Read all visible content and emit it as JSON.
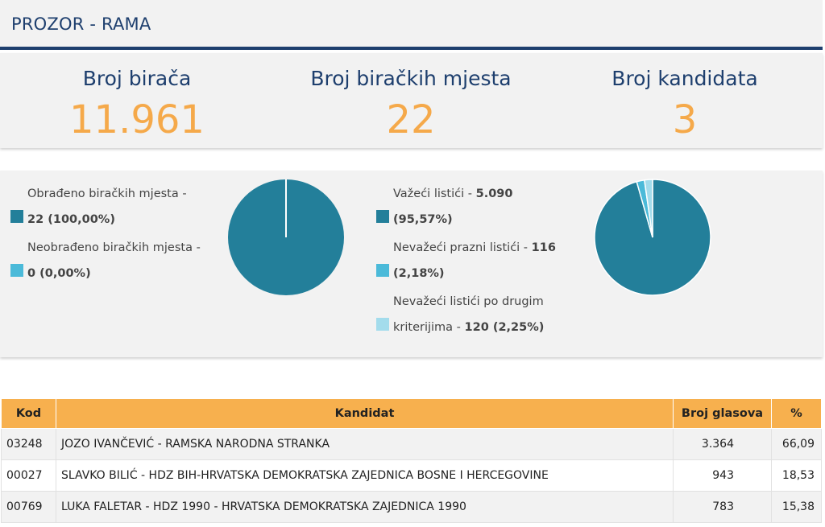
{
  "header": {
    "title": "PROZOR - RAMA"
  },
  "stats": [
    {
      "label": "Broj birača",
      "value": "11.961"
    },
    {
      "label": "Broj biračkih mjesta",
      "value": "22"
    },
    {
      "label": "Broj kandidata",
      "value": "3"
    }
  ],
  "polling_stations": {
    "items": [
      {
        "label": "Obrađeno biračkih mjesta -",
        "value": "22 (100,00%)",
        "color": "#237f9a",
        "fraction": 1.0
      },
      {
        "label": "Neobrađeno biračkih mjesta -",
        "value": "0 (0,00%)",
        "color": "#4bbad9",
        "fraction": 0.0
      }
    ]
  },
  "ballots": {
    "items": [
      {
        "label": "Važeći listići -",
        "value": "5.090",
        "value2": "(95,57%)",
        "color": "#237f9a",
        "fraction": 0.9557
      },
      {
        "label": "Nevažeći prazni listići -",
        "value": "116",
        "value2": "(2,18%)",
        "color": "#4bbad9",
        "fraction": 0.0218
      },
      {
        "label": "Nevažeći listići po drugim",
        "label2": "kriterijima -",
        "value": "120 (2,25%)",
        "color": "#a3dcec",
        "fraction": 0.0225
      }
    ]
  },
  "table": {
    "headers": {
      "code": "Kod",
      "candidate": "Kandidat",
      "votes": "Broj glasova",
      "pct": "%"
    },
    "rows": [
      {
        "code": "03248",
        "candidate": "JOZO IVANČEVIĆ - RAMSKA NARODNA STRANKA",
        "votes": "3.364",
        "pct": "66,09"
      },
      {
        "code": "00027",
        "candidate": "SLAVKO BILIĆ - HDZ BIH-HRVATSKA DEMOKRATSKA ZAJEDNICA BOSNE I HERCEGOVINE",
        "votes": "943",
        "pct": "18,53"
      },
      {
        "code": "00769",
        "candidate": "LUKA FALETAR - HDZ 1990 - HRVATSKA DEMOKRATSKA ZAJEDNICA 1990",
        "votes": "783",
        "pct": "15,38"
      }
    ]
  }
}
